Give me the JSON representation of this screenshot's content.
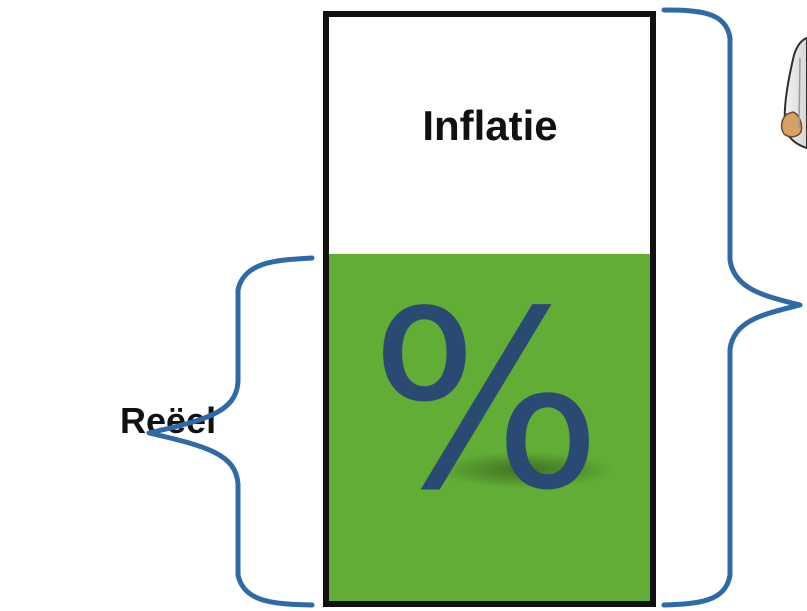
{
  "diagram": {
    "top_label": "Inflatie",
    "bottom_symbol": "%",
    "left_label": "Reëel",
    "colors": {
      "fill_green": "#62AD35",
      "outline": "#111111",
      "brace": "#2F6AA8",
      "symbol": "#2B4A73",
      "top_fill": "#FFFFFF"
    },
    "icons": {
      "top_right_figure": "cartoon-figure-icon"
    }
  }
}
